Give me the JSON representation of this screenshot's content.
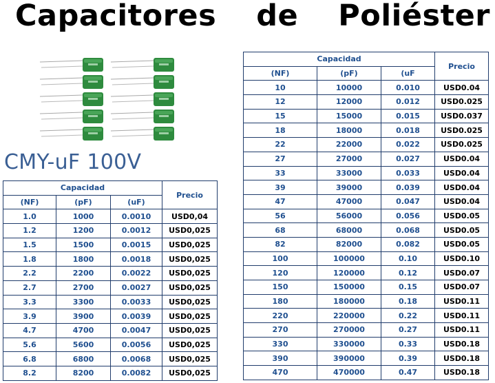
{
  "title": {
    "word1": "Capacitores",
    "word2": "de",
    "word3": "Poliéster"
  },
  "model": "CMY-uF 100V",
  "left_table": {
    "group_header": "Capacidad",
    "price_header": "Precio",
    "sub_headers": [
      "(NF)",
      "(pF)",
      "(uF)"
    ],
    "rows": [
      [
        "1.0",
        "1000",
        "0.0010",
        "USD0,04"
      ],
      [
        "1.2",
        "1200",
        "0.0012",
        "USD0,025"
      ],
      [
        "1.5",
        "1500",
        "0.0015",
        "USD0,025"
      ],
      [
        "1.8",
        "1800",
        "0.0018",
        "USD0,025"
      ],
      [
        "2.2",
        "2200",
        "0.0022",
        "USD0,025"
      ],
      [
        "2.7",
        "2700",
        "0.0027",
        "USD0,025"
      ],
      [
        "3.3",
        "3300",
        "0.0033",
        "USD0,025"
      ],
      [
        "3.9",
        "3900",
        "0.0039",
        "USD0,025"
      ],
      [
        "4.7",
        "4700",
        "0.0047",
        "USD0,025"
      ],
      [
        "5.6",
        "5600",
        "0.0056",
        "USD0,025"
      ],
      [
        "6.8",
        "6800",
        "0.0068",
        "USD0,025"
      ],
      [
        "8.2",
        "8200",
        "0.0082",
        "USD0,025"
      ]
    ]
  },
  "right_table": {
    "group_header": "Capacidad",
    "price_header": "Precio",
    "sub_headers": [
      "(NF)",
      "(pF)",
      "(uF"
    ],
    "rows": [
      [
        "10",
        "10000",
        "0.010",
        "USD0.04"
      ],
      [
        "12",
        "12000",
        "0.012",
        "USD0.025"
      ],
      [
        "15",
        "15000",
        "0.015",
        "USD0.037"
      ],
      [
        "18",
        "18000",
        "0.018",
        "USD0.025"
      ],
      [
        "22",
        "22000",
        "0.022",
        "USD0.025"
      ],
      [
        "27",
        "27000",
        "0.027",
        "USD0.04"
      ],
      [
        "33",
        "33000",
        "0.033",
        "USD0.04"
      ],
      [
        "39",
        "39000",
        "0.039",
        "USD0.04"
      ],
      [
        "47",
        "47000",
        "0.047",
        "USD0.04"
      ],
      [
        "56",
        "56000",
        "0.056",
        "USD0.05"
      ],
      [
        "68",
        "68000",
        "0.068",
        "USD0.05"
      ],
      [
        "82",
        "82000",
        "0.082",
        "USD0.05"
      ],
      [
        "100",
        "100000",
        "0.10",
        "USD0.10"
      ],
      [
        "120",
        "120000",
        "0.12",
        "USD0.07"
      ],
      [
        "150",
        "150000",
        "0.15",
        "USD0.07"
      ],
      [
        "180",
        "180000",
        "0.18",
        "USD0.11"
      ],
      [
        "220",
        "220000",
        "0.22",
        "USD0.11"
      ],
      [
        "270",
        "270000",
        "0.27",
        "USD0.11"
      ],
      [
        "330",
        "330000",
        "0.33",
        "USD0.18"
      ],
      [
        "390",
        "390000",
        "0.39",
        "USD0.18"
      ],
      [
        "470",
        "470000",
        "0.47",
        "USD0.18"
      ]
    ]
  },
  "colors": {
    "header_text": "#1f4f8f",
    "border": "#1f3b6b",
    "model_text": "#3a5f94",
    "capacitor_green": "#2e8b3e"
  }
}
